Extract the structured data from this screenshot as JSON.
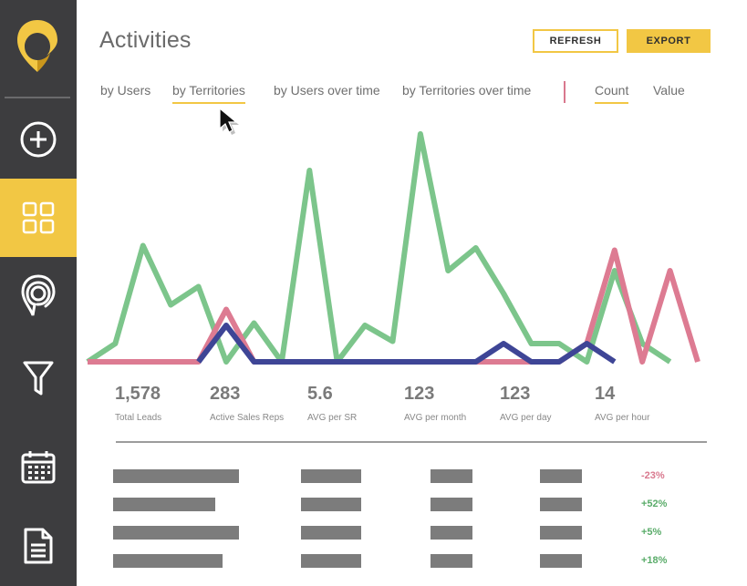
{
  "sidebar": {
    "logo_icon": "pin-logo-icon",
    "items": [
      {
        "id": "add",
        "icon": "plus-circle-icon",
        "active": false
      },
      {
        "id": "dashboard",
        "icon": "grid-icon",
        "active": true
      },
      {
        "id": "map",
        "icon": "map-pin-icon",
        "active": false
      },
      {
        "id": "filter",
        "icon": "funnel-icon",
        "active": false
      },
      {
        "id": "calendar",
        "icon": "calendar-icon",
        "active": false
      },
      {
        "id": "documents",
        "icon": "document-icon",
        "active": false
      }
    ]
  },
  "header": {
    "title": "Activities",
    "refresh_label": "REFRESH",
    "export_label": "EXPORT"
  },
  "tabs": [
    {
      "label": "by Users",
      "active": false
    },
    {
      "label": "by Territories",
      "active": true
    },
    {
      "label": "by Users over time",
      "active": false
    },
    {
      "label": "by Territories over time",
      "active": false
    }
  ],
  "metric_tabs": [
    {
      "label": "Count",
      "active": true
    },
    {
      "label": "Value",
      "active": false
    }
  ],
  "colors": {
    "accent": "#f2c744",
    "sidebar": "#3d3d3f",
    "series_green": "#7cc58b",
    "series_pink": "#dd7b92",
    "series_blue": "#3e4596",
    "negative": "#d9788e",
    "positive": "#5aac6a"
  },
  "chart_data": {
    "type": "line",
    "x": [
      0,
      1,
      2,
      3,
      4,
      5,
      6,
      7,
      8,
      9,
      10,
      11,
      12,
      13,
      14,
      15,
      16,
      17,
      18,
      19,
      20,
      21,
      22
    ],
    "ylim": [
      0,
      100
    ],
    "grid": false,
    "series": [
      {
        "color": "#7cc58b",
        "values": [
          0,
          8,
          51,
          25,
          33,
          0,
          17,
          0,
          84,
          0,
          16,
          9,
          100,
          40,
          50,
          30,
          8,
          8,
          0,
          40,
          8,
          0,
          null
        ]
      },
      {
        "color": "#dd7b92",
        "values": [
          0,
          0,
          0,
          0,
          0,
          23,
          0,
          0,
          0,
          0,
          0,
          0,
          0,
          0,
          0,
          0,
          0,
          0,
          8,
          49,
          0,
          40,
          0
        ]
      },
      {
        "color": "#3e4596",
        "values": [
          null,
          null,
          null,
          null,
          0,
          16,
          0,
          0,
          0,
          0,
          0,
          0,
          0,
          0,
          0,
          8,
          0,
          0,
          8,
          0,
          null,
          null,
          null
        ]
      }
    ]
  },
  "stats": [
    {
      "value": "1,578",
      "label": "Total Leads"
    },
    {
      "value": "283",
      "label": "Active Sales Reps"
    },
    {
      "value": "5.6",
      "label": "AVG per SR"
    },
    {
      "value": "123",
      "label": "AVG per month"
    },
    {
      "value": "123",
      "label": "AVG per day"
    },
    {
      "value": "14",
      "label": "AVG per hour"
    }
  ],
  "table": {
    "rows": [
      {
        "col1": 0.86,
        "col2": 0.65,
        "col3": 0.45,
        "col4": 0.45,
        "change": "-23%",
        "trend": "negative"
      },
      {
        "col1": 0.7,
        "col2": 0.65,
        "col3": 0.45,
        "col4": 0.45,
        "change": "+52%",
        "trend": "positive"
      },
      {
        "col1": 0.86,
        "col2": 0.65,
        "col3": 0.45,
        "col4": 0.45,
        "change": "+5%",
        "trend": "positive"
      },
      {
        "col1": 0.75,
        "col2": 0.65,
        "col3": 0.45,
        "col4": 0.45,
        "change": "+18%",
        "trend": "positive"
      }
    ]
  }
}
